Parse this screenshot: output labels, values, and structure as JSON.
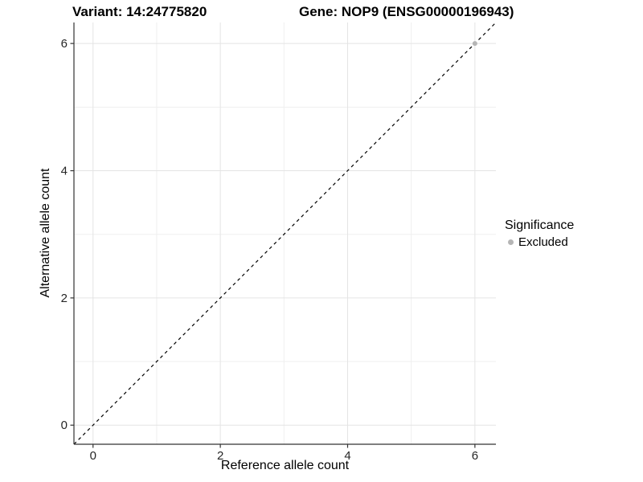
{
  "chart_data": {
    "type": "scatter",
    "title_left": "Variant: 14:24775820",
    "title_right": "Gene: NOP9 (ENSG00000196943)",
    "xlabel": "Reference allele count",
    "ylabel": "Alternative allele count",
    "x_ticks": [
      0,
      2,
      4,
      6
    ],
    "y_ticks": [
      0,
      2,
      4,
      6
    ],
    "x_minor_gridlines": [
      1,
      3,
      5
    ],
    "y_minor_gridlines": [
      1,
      3,
      5
    ],
    "xlim": [
      -0.3,
      6.33
    ],
    "ylim": [
      -0.3,
      6.33
    ],
    "grid": "on",
    "identity_line": {
      "style": "dashed",
      "slope": 1,
      "intercept": 0,
      "color": "#000000"
    },
    "points": [
      {
        "x": 6,
        "y": 6,
        "significance": "Excluded"
      }
    ],
    "legend": {
      "position": "right",
      "title": "Significance",
      "items": [
        {
          "label": "Excluded",
          "color": "#b5b5b5",
          "marker": "circle"
        }
      ]
    },
    "colors": {
      "point_excluded": "#b5b5b5",
      "grid_major": "#e4e4e4",
      "grid_minor": "#efefef",
      "axis_line": "#333333",
      "tick_mark": "#333333",
      "tick_label": "#262626",
      "identity_line": "#000000",
      "background": "#ffffff"
    }
  }
}
